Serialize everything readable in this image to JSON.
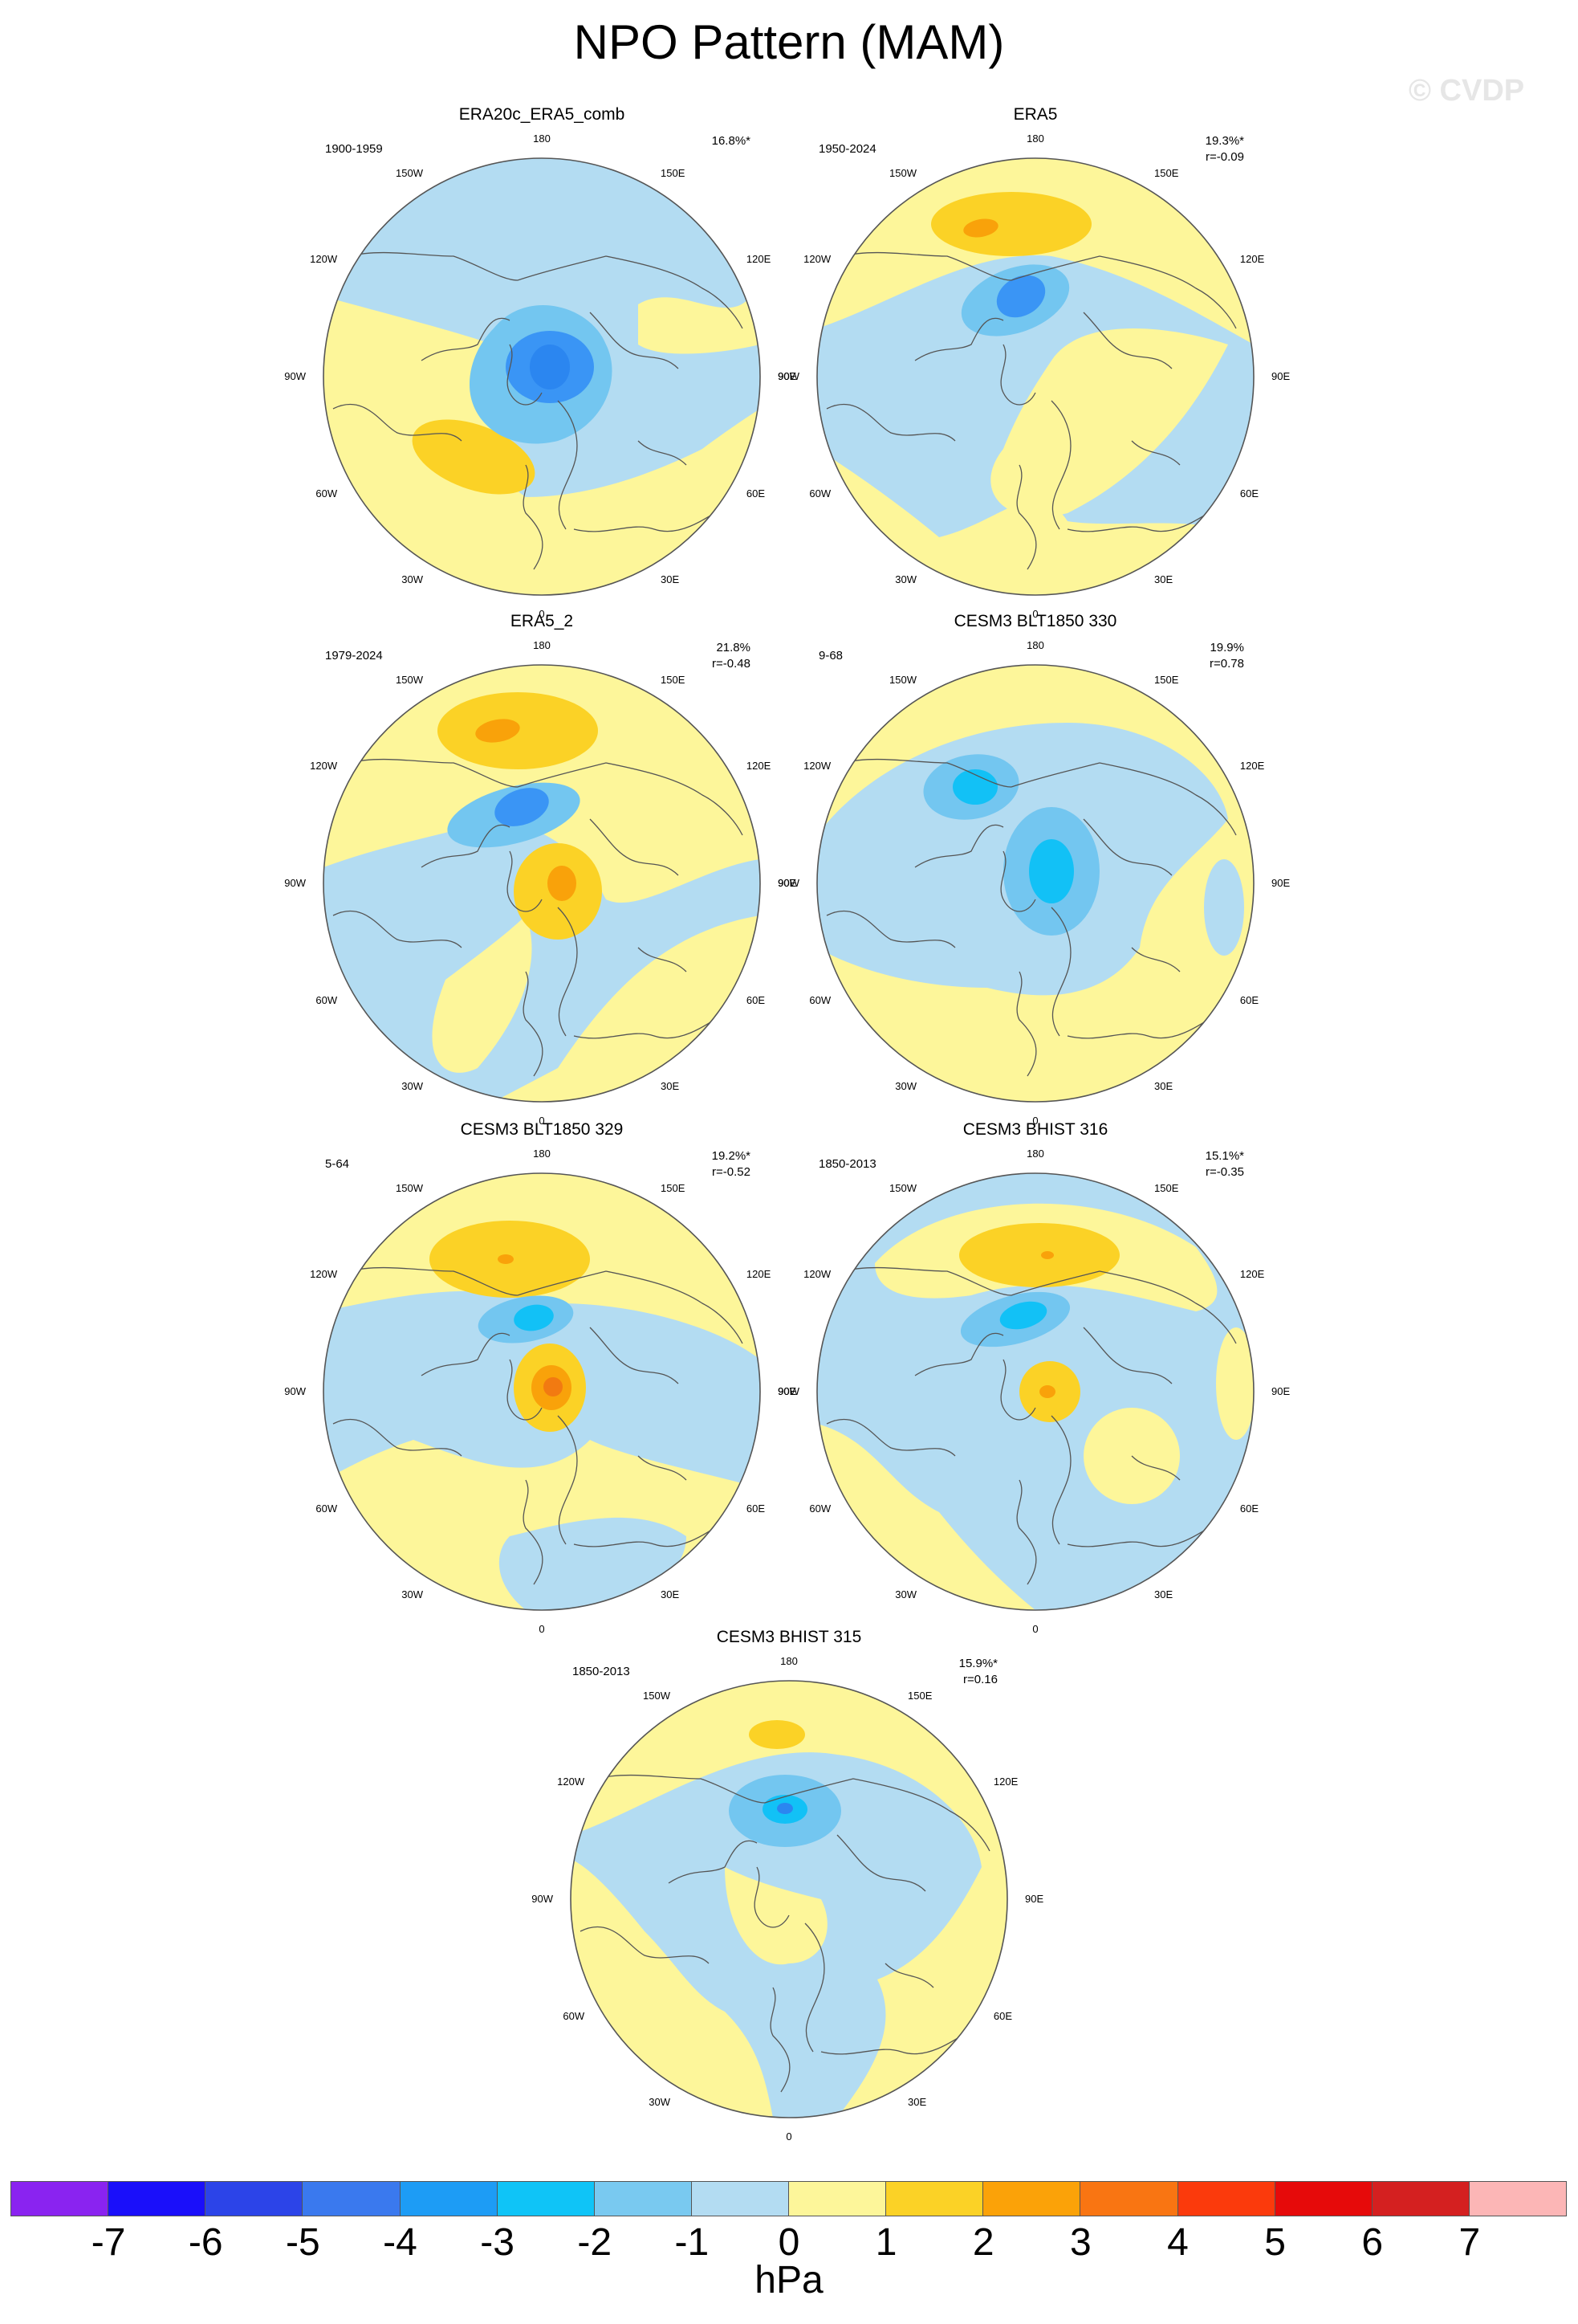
{
  "title": "NPO Pattern (MAM)",
  "watermark": "© CVDP",
  "colors": {
    "neg4": "#3a95f5",
    "neg3": "#12c1f6",
    "neg2": "#73c6f0",
    "neg1": "#b3dcf2",
    "pos1": "#fdf69a",
    "pos2": "#fbd226",
    "pos3": "#f9a20a",
    "pos4": "#f27a11",
    "coast": "#555555"
  },
  "longitude_labels": [
    "180",
    "150E",
    "120E",
    "90E",
    "60E",
    "30E",
    "0",
    "30W",
    "60W",
    "90W",
    "120W",
    "150W"
  ],
  "panels": [
    {
      "title": "ERA20c_ERA5_comb",
      "period": "1900-1959",
      "pct": "16.8%*",
      "r": ""
    },
    {
      "title": "ERA5",
      "period": "1950-2024",
      "pct": "19.3%*",
      "r": "r=-0.09"
    },
    {
      "title": "ERA5_2",
      "period": "1979-2024",
      "pct": "21.8%",
      "r": "r=-0.48"
    },
    {
      "title": "CESM3 BLT1850 330",
      "period": "9-68",
      "pct": "19.9%",
      "r": "r=0.78"
    },
    {
      "title": "CESM3 BLT1850 329",
      "period": "5-64",
      "pct": "19.2%*",
      "r": "r=-0.52"
    },
    {
      "title": "CESM3 BHIST 316",
      "period": "1850-2013",
      "pct": "15.1%*",
      "r": "r=-0.35"
    },
    {
      "title": "CESM3 BHIST 315",
      "period": "1850-2013",
      "pct": "15.9%*",
      "r": "r=0.16"
    }
  ],
  "colorbar": {
    "units": "hPa",
    "labels": [
      "-7",
      "-6",
      "-5",
      "-4",
      "-3",
      "-2",
      "-1",
      "0",
      "1",
      "2",
      "3",
      "4",
      "5",
      "6",
      "7"
    ],
    "colors": [
      "#8a23f0",
      "#1a0ffa",
      "#2c44e8",
      "#3a79ee",
      "#1d9cf5",
      "#0fc4f7",
      "#79c9f0",
      "#b3dcf2",
      "#fdf69a",
      "#fbd226",
      "#fba208",
      "#f97512",
      "#fb3a0c",
      "#e60a0a",
      "#d42020",
      "#fcb6b6"
    ]
  }
}
